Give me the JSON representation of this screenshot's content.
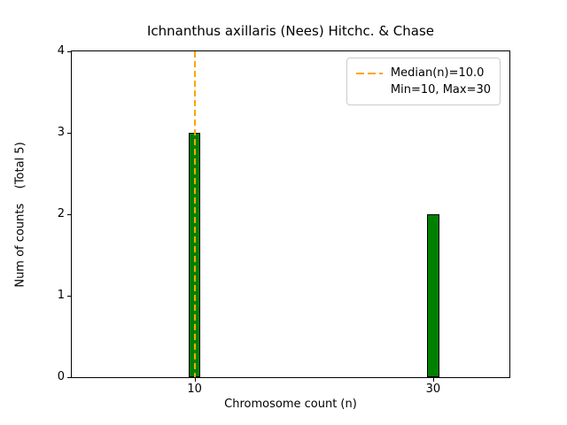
{
  "chart_data": {
    "type": "bar",
    "title": "Ichnanthus axillaris (Nees) Hitchc. & Chase",
    "xlabel": "Chromosome count (n)",
    "ylabel": "Num of counts    (Total 5)",
    "x": [
      10,
      30
    ],
    "values": [
      3,
      2
    ],
    "categories": [
      "10",
      "30"
    ],
    "total_counts": 5,
    "min": 10,
    "max": 30,
    "median": 10.0,
    "bar_color": "#008000",
    "bar_edge_color": "#000000",
    "bar_width_units": 1.0,
    "xlim": [
      -0.3,
      36.4
    ],
    "ylim": [
      0,
      4
    ],
    "xticks": [
      10,
      30
    ],
    "yticks": [
      0,
      1,
      2,
      3,
      4
    ],
    "grid": false,
    "median_line": {
      "x": 10,
      "color": "#FFA500",
      "style": "dashed"
    },
    "legend": {
      "position": "upper right",
      "entries": [
        "Median(n)=10.0",
        "Min=10, Max=30"
      ]
    }
  }
}
